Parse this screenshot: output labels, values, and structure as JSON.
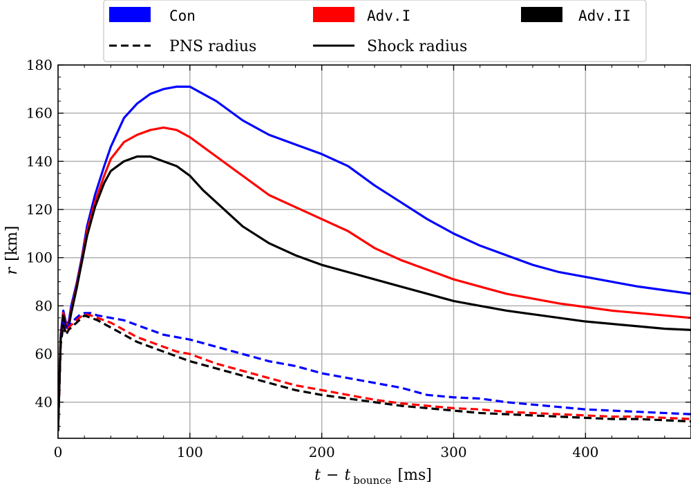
{
  "chart_data": {
    "type": "line",
    "title": "",
    "xlabel_var": "t",
    "xlabel_sub_var": "t",
    "xlabel_sub": "bounce",
    "xlabel_unit": "[ms]",
    "ylabel_var": "r",
    "ylabel_unit": "[km]",
    "xlim": [
      0,
      480
    ],
    "ylim": [
      25,
      180
    ],
    "xticks": [
      0,
      100,
      200,
      300,
      400
    ],
    "yticks": [
      40,
      60,
      80,
      100,
      120,
      140,
      160,
      180
    ],
    "grid": true,
    "legend_position": "top",
    "legend": {
      "models": [
        {
          "label": "Con",
          "color": "#0000ff"
        },
        {
          "label": "Adv.I",
          "color": "#ff0000"
        },
        {
          "label": "Adv.II",
          "color": "#000000"
        }
      ],
      "linestyles": [
        {
          "label": "PNS radius",
          "style": "dashed"
        },
        {
          "label": "Shock radius",
          "style": "solid"
        }
      ]
    },
    "series": [
      {
        "name": "Con shock radius",
        "model": "Con",
        "kind": "shock",
        "color": "#0000ff",
        "x": [
          0,
          2,
          4,
          6,
          8,
          10,
          14,
          18,
          22,
          28,
          35,
          40,
          50,
          60,
          70,
          80,
          90,
          100,
          110,
          120,
          140,
          160,
          180,
          200,
          220,
          240,
          260,
          280,
          300,
          320,
          340,
          360,
          380,
          400,
          420,
          440,
          460,
          480
        ],
        "y": [
          28,
          68,
          78,
          73,
          73,
          80,
          89,
          100,
          113,
          126,
          138,
          146,
          158,
          164,
          168,
          170,
          171,
          171,
          168,
          165,
          157,
          151,
          147,
          143,
          138,
          130,
          123,
          116,
          110,
          105,
          101,
          97,
          94,
          92,
          90,
          88,
          86.5,
          85
        ]
      },
      {
        "name": "Adv.I shock radius",
        "model": "Adv.I",
        "kind": "shock",
        "color": "#ff0000",
        "x": [
          0,
          2,
          4,
          6,
          8,
          10,
          14,
          18,
          22,
          28,
          35,
          40,
          50,
          60,
          70,
          80,
          90,
          100,
          110,
          120,
          140,
          160,
          180,
          200,
          220,
          240,
          260,
          280,
          300,
          320,
          340,
          360,
          380,
          400,
          420,
          440,
          460,
          480
        ],
        "y": [
          28,
          67,
          77,
          72,
          72,
          78,
          88,
          99,
          111,
          123,
          134,
          141,
          148,
          151,
          153,
          154,
          153,
          150,
          146,
          142,
          134,
          126,
          121,
          116,
          111,
          104,
          99,
          95,
          91,
          88,
          85,
          83,
          81,
          79.5,
          78,
          77,
          76,
          75
        ]
      },
      {
        "name": "Adv.II shock radius",
        "model": "Adv.II",
        "kind": "shock",
        "color": "#000000",
        "x": [
          0,
          2,
          4,
          6,
          8,
          10,
          14,
          18,
          22,
          28,
          35,
          40,
          50,
          60,
          70,
          80,
          90,
          100,
          110,
          120,
          140,
          160,
          180,
          200,
          220,
          240,
          260,
          280,
          300,
          320,
          340,
          360,
          380,
          400,
          420,
          440,
          460,
          480
        ],
        "y": [
          28,
          66,
          76,
          71,
          71,
          77,
          87,
          98,
          109,
          121,
          131,
          136,
          140,
          142,
          142,
          140,
          138,
          134,
          128,
          123,
          113,
          106,
          101,
          97,
          94,
          91,
          88,
          85,
          82,
          80,
          78,
          76.5,
          75,
          73.5,
          72.5,
          71.5,
          70.5,
          70
        ]
      },
      {
        "name": "Con PNS radius",
        "model": "Con",
        "kind": "pns",
        "color": "#0000ff",
        "x": [
          0,
          2,
          4,
          6,
          8,
          12,
          16,
          20,
          25,
          30,
          40,
          50,
          60,
          70,
          80,
          90,
          100,
          120,
          140,
          160,
          180,
          200,
          220,
          240,
          260,
          280,
          300,
          320,
          340,
          360,
          380,
          400,
          420,
          440,
          460,
          480
        ],
        "y": [
          28,
          65,
          73,
          70,
          72,
          74,
          76,
          77,
          77,
          76,
          75,
          74,
          72,
          70,
          68,
          67,
          66,
          63,
          60,
          57,
          55,
          52,
          50,
          48,
          46,
          43,
          42,
          41.5,
          40,
          39,
          38,
          37,
          36.5,
          36,
          35.5,
          35
        ]
      },
      {
        "name": "Adv.I PNS radius",
        "model": "Adv.I",
        "kind": "pns",
        "color": "#ff0000",
        "x": [
          0,
          2,
          4,
          6,
          8,
          12,
          16,
          20,
          25,
          30,
          40,
          50,
          60,
          70,
          80,
          90,
          100,
          120,
          140,
          160,
          180,
          200,
          220,
          240,
          260,
          280,
          300,
          320,
          340,
          360,
          380,
          400,
          420,
          440,
          460,
          480
        ],
        "y": [
          28,
          64,
          72,
          69,
          71,
          73,
          75,
          76.5,
          76,
          75,
          73,
          70,
          67,
          65,
          63,
          61,
          60,
          56,
          53,
          50,
          47,
          45,
          43,
          41,
          39.5,
          38.5,
          37.5,
          37,
          36,
          35.5,
          35,
          34.5,
          34,
          34,
          33.5,
          33
        ]
      },
      {
        "name": "Adv.II PNS radius",
        "model": "Adv.II",
        "kind": "pns",
        "color": "#000000",
        "x": [
          0,
          2,
          4,
          6,
          8,
          12,
          16,
          20,
          25,
          30,
          40,
          50,
          60,
          70,
          80,
          90,
          100,
          120,
          140,
          160,
          180,
          200,
          220,
          240,
          260,
          280,
          300,
          320,
          340,
          360,
          380,
          400,
          420,
          440,
          460,
          480
        ],
        "y": [
          28,
          64,
          72,
          68,
          70,
          72,
          74,
          76,
          75,
          74,
          71,
          68,
          65,
          63,
          61,
          59,
          57,
          54,
          51,
          48,
          45,
          43,
          41.5,
          40,
          38.5,
          37.5,
          36.5,
          35.5,
          35,
          34.5,
          34,
          33.5,
          33,
          33,
          32.5,
          32
        ]
      }
    ]
  }
}
